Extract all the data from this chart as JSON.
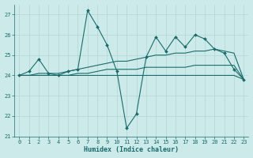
{
  "xlabel": "Humidex (Indice chaleur)",
  "ylabel": "",
  "xlim": [
    -0.5,
    23.5
  ],
  "ylim": [
    21,
    27.5
  ],
  "yticks": [
    21,
    22,
    23,
    24,
    25,
    26,
    27
  ],
  "xticks": [
    0,
    1,
    2,
    3,
    4,
    5,
    6,
    7,
    8,
    9,
    10,
    11,
    12,
    13,
    14,
    15,
    16,
    17,
    18,
    19,
    20,
    21,
    22,
    23
  ],
  "bg_color": "#cdeaea",
  "grid_color": "#b8d8d8",
  "line_color": "#1a6b6b",
  "line1": {
    "x": [
      0,
      1,
      2,
      3,
      4,
      5,
      6,
      7,
      8,
      9,
      10,
      11,
      12,
      13,
      14,
      15,
      16,
      17,
      18,
      19,
      20,
      21,
      22,
      23
    ],
    "y": [
      24.0,
      24.2,
      24.8,
      24.1,
      24.0,
      24.2,
      24.3,
      27.2,
      26.4,
      25.5,
      24.2,
      21.4,
      22.1,
      24.9,
      25.9,
      25.2,
      25.9,
      25.4,
      26.0,
      25.8,
      25.3,
      25.1,
      24.3,
      23.8
    ]
  },
  "line2": {
    "x": [
      0,
      1,
      2,
      3,
      4,
      5,
      6,
      7,
      8,
      9,
      10,
      11,
      12,
      13,
      14,
      15,
      16,
      17,
      18,
      19,
      20,
      21,
      22,
      23
    ],
    "y": [
      24.0,
      24.0,
      24.0,
      24.0,
      24.0,
      24.0,
      24.0,
      24.0,
      24.0,
      24.0,
      24.0,
      24.0,
      24.0,
      24.0,
      24.0,
      24.0,
      24.0,
      24.0,
      24.0,
      24.0,
      24.0,
      24.0,
      24.0,
      23.8
    ]
  },
  "line3": {
    "x": [
      0,
      1,
      2,
      3,
      4,
      5,
      6,
      7,
      8,
      9,
      10,
      11,
      12,
      13,
      14,
      15,
      16,
      17,
      18,
      19,
      20,
      21,
      22,
      23
    ],
    "y": [
      24.0,
      24.0,
      24.1,
      24.1,
      24.1,
      24.2,
      24.3,
      24.4,
      24.5,
      24.6,
      24.7,
      24.7,
      24.8,
      24.9,
      25.0,
      25.0,
      25.1,
      25.1,
      25.2,
      25.2,
      25.3,
      25.2,
      25.1,
      23.8
    ]
  },
  "line4": {
    "x": [
      0,
      1,
      2,
      3,
      4,
      5,
      6,
      7,
      8,
      9,
      10,
      11,
      12,
      13,
      14,
      15,
      16,
      17,
      18,
      19,
      20,
      21,
      22,
      23
    ],
    "y": [
      24.0,
      24.0,
      24.0,
      24.0,
      24.0,
      24.0,
      24.1,
      24.1,
      24.2,
      24.3,
      24.3,
      24.3,
      24.3,
      24.4,
      24.4,
      24.4,
      24.4,
      24.4,
      24.5,
      24.5,
      24.5,
      24.5,
      24.5,
      23.8
    ]
  },
  "tick_fontsize": 5.0,
  "xlabel_fontsize": 6.0,
  "marker_size": 2.0,
  "linewidth": 0.8
}
